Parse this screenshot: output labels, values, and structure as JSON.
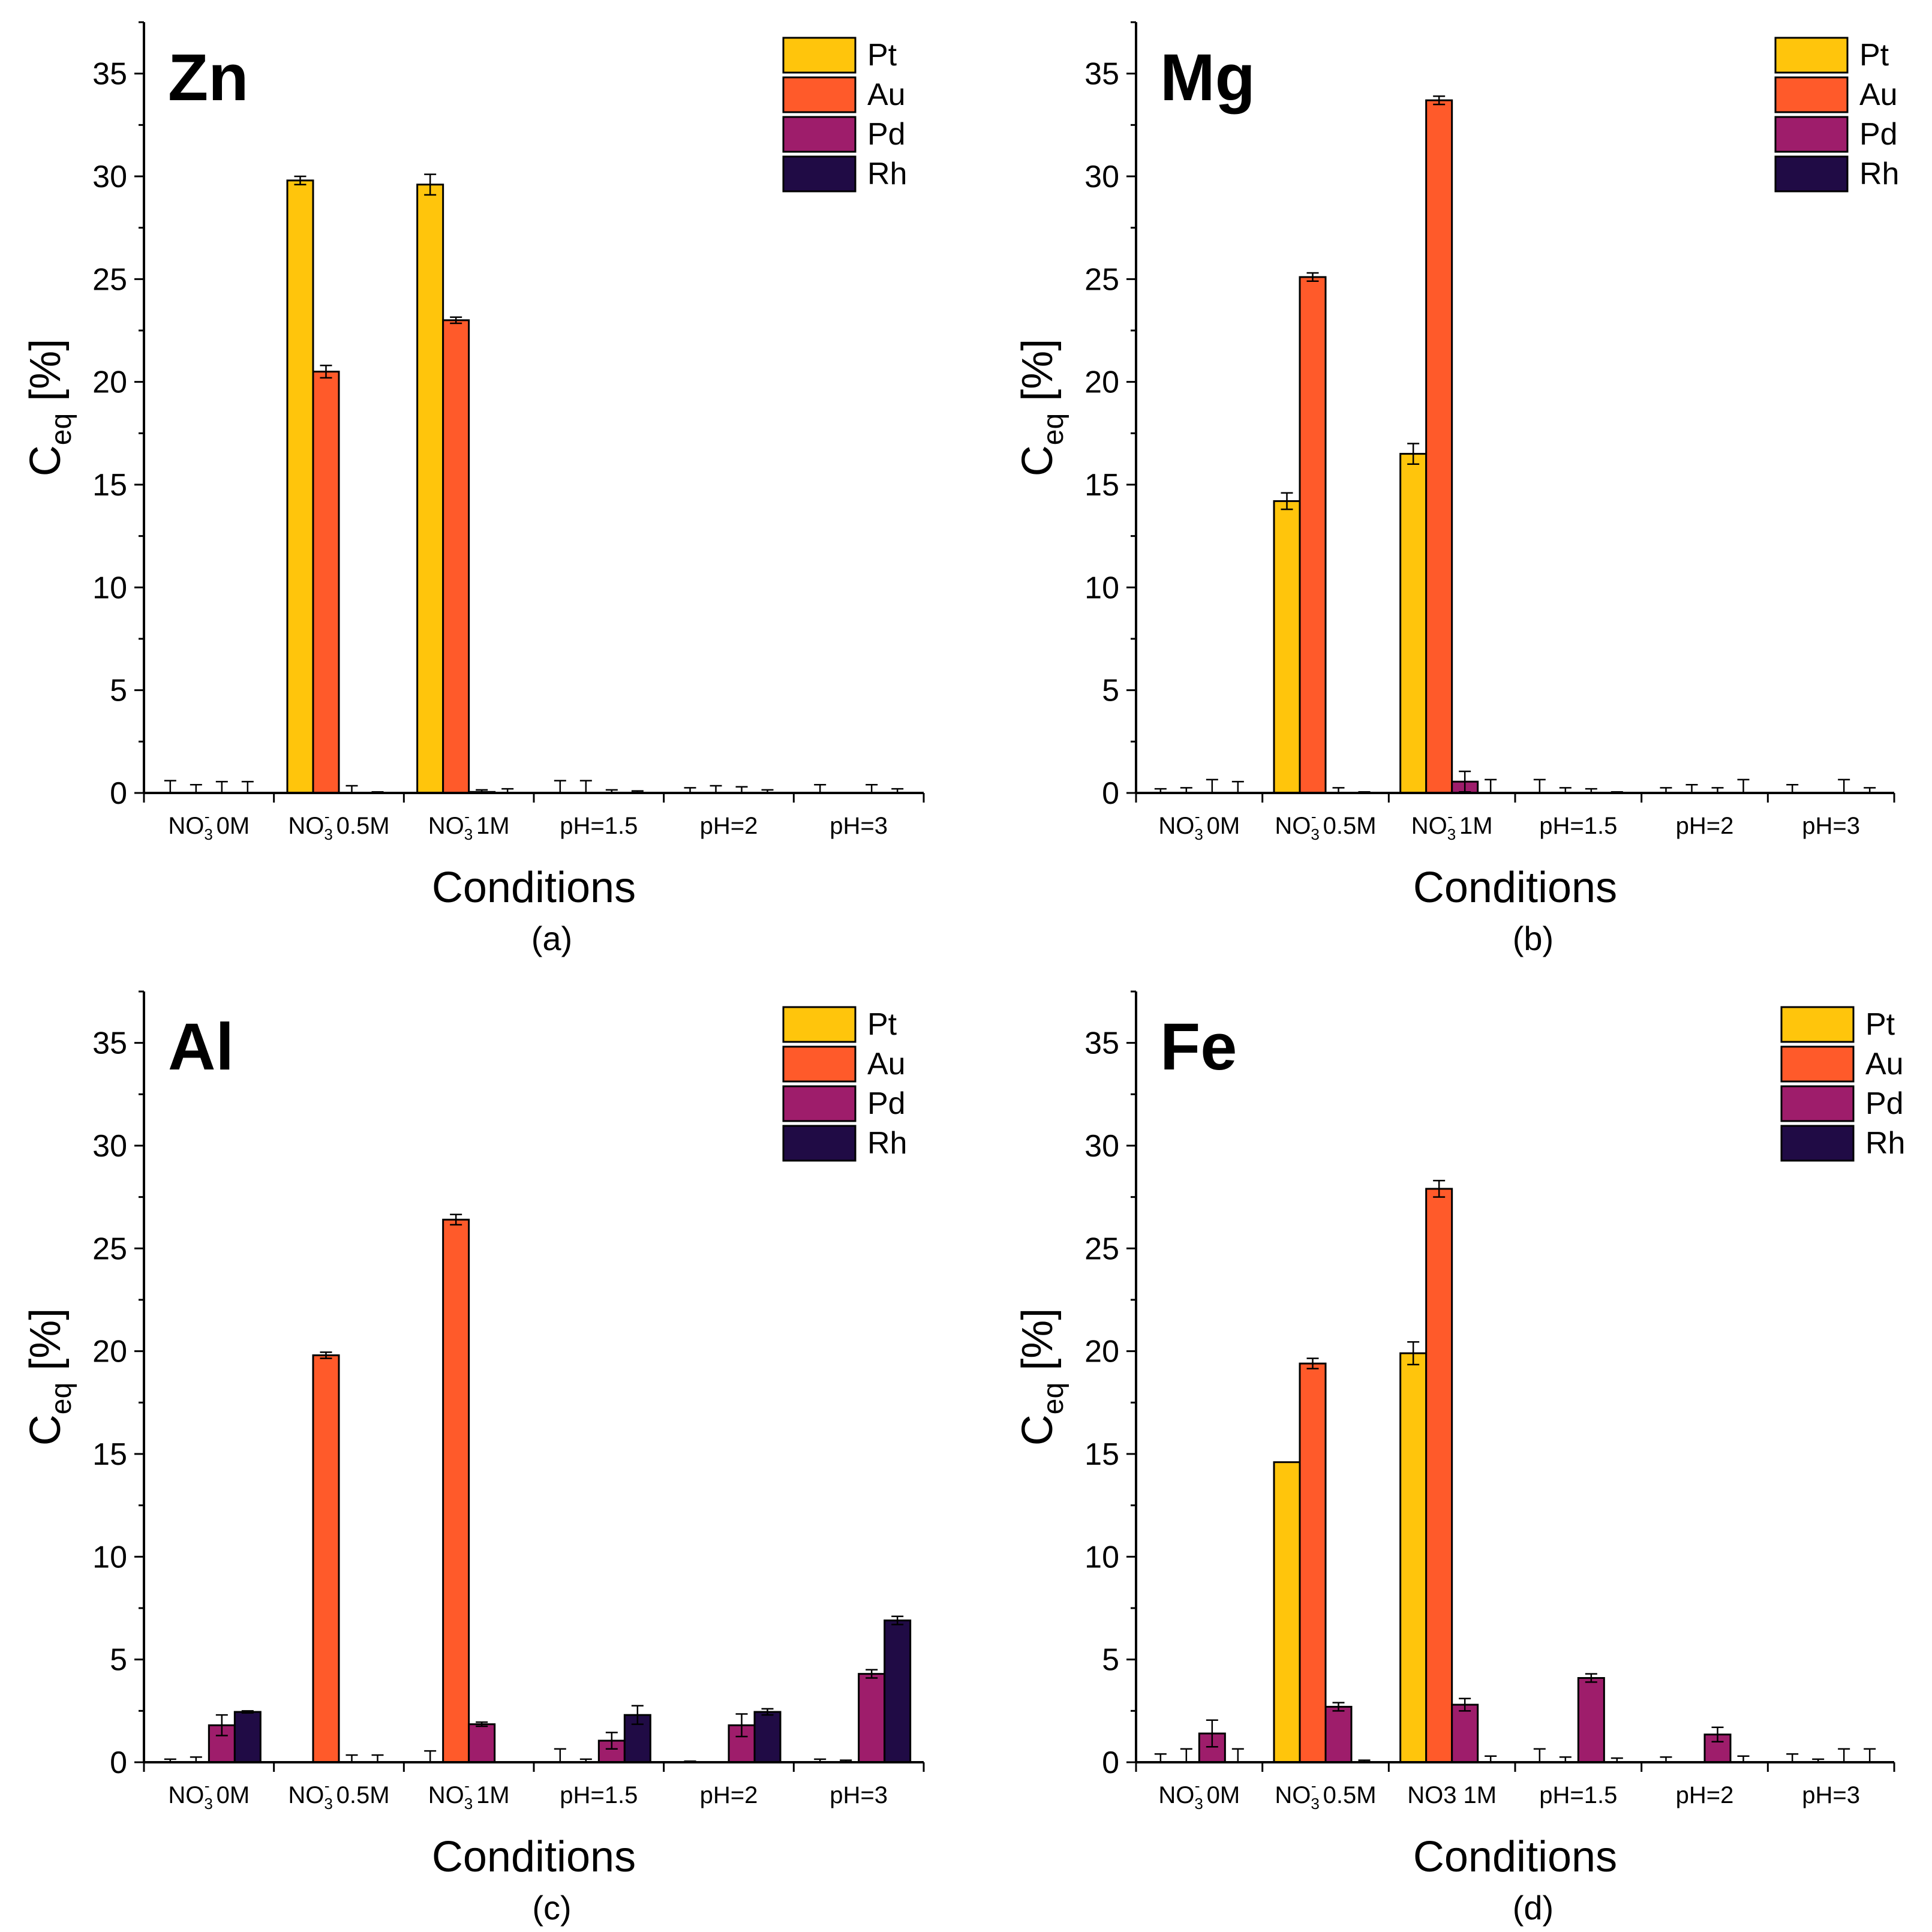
{
  "colors": {
    "Pt": "#FFC50C",
    "Au": "#FF5A2A",
    "Pd": "#9E1D6B",
    "Rh": "#200B45",
    "axis": "#000000",
    "error_bar": "#000000"
  },
  "chart_data": [
    {
      "type": "bar",
      "panel": "(a)",
      "title": "Zn",
      "xlabel": "Conditions",
      "ylabel": "C_eq [%]",
      "ylabel_parts": {
        "main": "C",
        "sub": "eq",
        "rest": " [%]"
      },
      "ylim": [
        0,
        37.5
      ],
      "yticks": [
        0,
        5,
        10,
        15,
        20,
        25,
        30,
        35
      ],
      "legend_position": "top-right",
      "categories": [
        {
          "base": "NO",
          "sub": "3",
          "sup": "-",
          "rest": " 0M"
        },
        {
          "base": "NO",
          "sub": "3",
          "sup": "-",
          "rest": " 0.5M"
        },
        {
          "base": "NO",
          "sub": "3",
          "sup": "-",
          "rest": " 1M"
        },
        {
          "base": "pH=1.5"
        },
        {
          "base": "pH=2"
        },
        {
          "base": "pH=3"
        }
      ],
      "series": [
        {
          "name": "Pt",
          "values": [
            0,
            29.8,
            29.6,
            0,
            0,
            0
          ],
          "errors": [
            0.6,
            0.2,
            0.5,
            0.6,
            0.25,
            0.4
          ]
        },
        {
          "name": "Au",
          "values": [
            0,
            20.5,
            23.0,
            0,
            0,
            0
          ],
          "errors": [
            0.4,
            0.3,
            0.15,
            0.6,
            0.35,
            0
          ]
        },
        {
          "name": "Pd",
          "values": [
            0,
            0,
            0.05,
            0,
            0,
            0
          ],
          "errors": [
            0.55,
            0.35,
            0.1,
            0.15,
            0.3,
            0.4
          ]
        },
        {
          "name": "Rh",
          "values": [
            0,
            0,
            0,
            0,
            0,
            0
          ],
          "errors": [
            0.55,
            0.05,
            0.2,
            0.1,
            0.15,
            0.2
          ]
        }
      ]
    },
    {
      "type": "bar",
      "panel": "(b)",
      "title": "Mg",
      "xlabel": "Conditions",
      "ylabel": "C_eq [%]",
      "ylabel_parts": {
        "main": "C",
        "sub": "eq",
        "rest": " [%]"
      },
      "ylim": [
        0,
        37.5
      ],
      "yticks": [
        0,
        5,
        10,
        15,
        20,
        25,
        30,
        35
      ],
      "legend_position": "top-right",
      "categories": [
        {
          "base": "NO",
          "sub": "3",
          "sup": "-",
          "rest": " 0M"
        },
        {
          "base": "NO",
          "sub": "3",
          "sup": "-",
          "rest": " 0.5M"
        },
        {
          "base": "NO",
          "sub": "3",
          "sup": "-",
          "rest": " 1M"
        },
        {
          "base": "pH=1.5"
        },
        {
          "base": "pH=2"
        },
        {
          "base": "pH=3"
        }
      ],
      "series": [
        {
          "name": "Pt",
          "values": [
            0,
            14.2,
            16.5,
            0,
            0,
            0
          ],
          "errors": [
            0.2,
            0.4,
            0.5,
            0.65,
            0.25,
            0.4
          ]
        },
        {
          "name": "Au",
          "values": [
            0,
            25.1,
            33.7,
            0,
            0,
            0
          ],
          "errors": [
            0.25,
            0.2,
            0.2,
            0.25,
            0.4,
            0
          ]
        },
        {
          "name": "Pd",
          "values": [
            0,
            0,
            0.55,
            0,
            0,
            0
          ],
          "errors": [
            0.65,
            0.25,
            0.5,
            0.2,
            0.25,
            0.65
          ]
        },
        {
          "name": "Rh",
          "values": [
            0,
            0,
            0,
            0,
            0,
            0
          ],
          "errors": [
            0.55,
            0.05,
            0.65,
            0.05,
            0.65,
            0.25
          ]
        }
      ]
    },
    {
      "type": "bar",
      "panel": "(c)",
      "title": "Al",
      "xlabel": "Conditions",
      "ylabel": "C_eq [%]",
      "ylabel_parts": {
        "main": "C",
        "sub": "eq",
        "rest": " [%]"
      },
      "ylim": [
        0,
        37.5
      ],
      "yticks": [
        0,
        5,
        10,
        15,
        20,
        25,
        30,
        35
      ],
      "legend_position": "top-right",
      "categories": [
        {
          "base": "NO",
          "sub": "3",
          "sup": "-",
          "rest": " 0M"
        },
        {
          "base": "NO",
          "sub": "3",
          "sup": "-",
          "rest": " 0.5M"
        },
        {
          "base": "NO",
          "sub": "3",
          "sup": "-",
          "rest": " 1M"
        },
        {
          "base": "pH=1.5"
        },
        {
          "base": "pH=2"
        },
        {
          "base": "pH=3"
        }
      ],
      "series": [
        {
          "name": "Pt",
          "values": [
            0,
            0,
            0,
            0,
            0,
            0
          ],
          "errors": [
            0.15,
            0,
            0.55,
            0.65,
            0.05,
            0.15
          ]
        },
        {
          "name": "Au",
          "values": [
            0,
            19.8,
            26.4,
            0,
            0,
            0
          ],
          "errors": [
            0.25,
            0.15,
            0.25,
            0.15,
            0,
            0.1
          ]
        },
        {
          "name": "Pd",
          "values": [
            1.8,
            0,
            1.85,
            1.05,
            1.8,
            4.3
          ],
          "errors": [
            0.5,
            0.35,
            0.1,
            0.4,
            0.55,
            0.2
          ]
        },
        {
          "name": "Rh",
          "values": [
            2.45,
            0,
            0,
            2.3,
            2.45,
            6.9
          ],
          "errors": [
            0.05,
            0.35,
            0,
            0.45,
            0.15,
            0.2
          ]
        }
      ]
    },
    {
      "type": "bar",
      "panel": "(d)",
      "title": "Fe",
      "xlabel": "Conditions",
      "ylabel": "C_eq [%]",
      "ylabel_parts": {
        "main": "C",
        "sub": "eq",
        "rest": " [%]"
      },
      "ylim": [
        0,
        37.5
      ],
      "yticks": [
        0,
        5,
        10,
        15,
        20,
        25,
        30,
        35
      ],
      "legend_position": "top-right",
      "categories": [
        {
          "base": "NO",
          "sub": "3",
          "sup": "-",
          "rest": " 0M"
        },
        {
          "base": "NO",
          "sub": "3",
          "sup": "-",
          "rest": " 0.5M"
        },
        {
          "base": "NO3 1M"
        },
        {
          "base": "pH=1.5"
        },
        {
          "base": "pH=2"
        },
        {
          "base": "pH=3"
        }
      ],
      "series": [
        {
          "name": "Pt",
          "values": [
            0,
            14.6,
            19.9,
            0,
            0,
            0
          ],
          "errors": [
            0.4,
            0,
            0.55,
            0.65,
            0.25,
            0.4
          ]
        },
        {
          "name": "Au",
          "values": [
            0,
            19.4,
            27.9,
            0,
            0,
            0
          ],
          "errors": [
            0.65,
            0.25,
            0.4,
            0.25,
            0,
            0.15
          ]
        },
        {
          "name": "Pd",
          "values": [
            1.4,
            2.7,
            2.8,
            4.1,
            1.35,
            0
          ],
          "errors": [
            0.65,
            0.2,
            0.3,
            0.2,
            0.35,
            0.65
          ]
        },
        {
          "name": "Rh",
          "values": [
            0,
            0,
            0,
            0,
            0,
            0
          ],
          "errors": [
            0.65,
            0.1,
            0.3,
            0.2,
            0.3,
            0.65
          ]
        }
      ]
    }
  ]
}
